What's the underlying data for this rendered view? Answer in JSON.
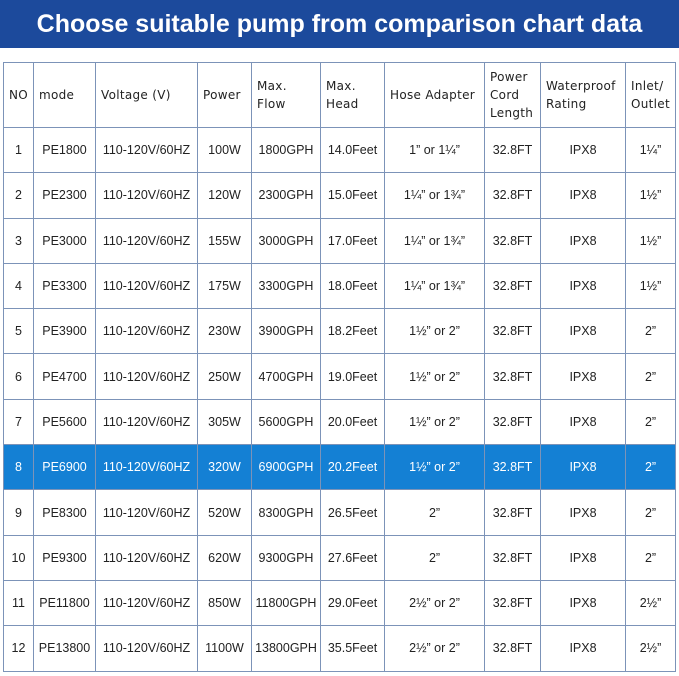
{
  "header": {
    "title": "Choose suitable pump from comparison chart data"
  },
  "table": {
    "columns": [
      "NO",
      "mode",
      "Voltage (V)",
      "Power",
      "Max.\nFlow",
      "Max.\nHead",
      "Hose Adapter",
      "Power\nCord\nLength",
      "Waterproof\nRating",
      "Inlet/\nOutlet"
    ],
    "rows": [
      [
        "1",
        "PE1800",
        "110-120V/60HZ",
        "100W",
        "1800GPH",
        "14.0Feet",
        "1” or 1¼”",
        "32.8FT",
        "IPX8",
        "1¼”"
      ],
      [
        "2",
        "PE2300",
        "110-120V/60HZ",
        "120W",
        "2300GPH",
        "15.0Feet",
        "1¼” or 1¾”",
        "32.8FT",
        "IPX8",
        "1½”"
      ],
      [
        "3",
        "PE3000",
        "110-120V/60HZ",
        "155W",
        "3000GPH",
        "17.0Feet",
        "1¼” or 1¾”",
        "32.8FT",
        "IPX8",
        "1½”"
      ],
      [
        "4",
        "PE3300",
        "110-120V/60HZ",
        "175W",
        "3300GPH",
        "18.0Feet",
        "1¼” or 1¾”",
        "32.8FT",
        "IPX8",
        "1½”"
      ],
      [
        "5",
        "PE3900",
        "110-120V/60HZ",
        "230W",
        "3900GPH",
        "18.2Feet",
        "1½” or 2”",
        "32.8FT",
        "IPX8",
        "2”"
      ],
      [
        "6",
        "PE4700",
        "110-120V/60HZ",
        "250W",
        "4700GPH",
        "19.0Feet",
        "1½” or 2”",
        "32.8FT",
        "IPX8",
        "2”"
      ],
      [
        "7",
        "PE5600",
        "110-120V/60HZ",
        "305W",
        "5600GPH",
        "20.0Feet",
        "1½” or 2”",
        "32.8FT",
        "IPX8",
        "2”"
      ],
      [
        "8",
        "PE6900",
        "110-120V/60HZ",
        "320W",
        "6900GPH",
        "20.2Feet",
        "1½” or 2”",
        "32.8FT",
        "IPX8",
        "2”"
      ],
      [
        "9",
        "PE8300",
        "110-120V/60HZ",
        "520W",
        "8300GPH",
        "26.5Feet",
        "2”",
        "32.8FT",
        "IPX8",
        "2”"
      ],
      [
        "10",
        "PE9300",
        "110-120V/60HZ",
        "620W",
        "9300GPH",
        "27.6Feet",
        "2”",
        "32.8FT",
        "IPX8",
        "2”"
      ],
      [
        "11",
        "PE11800",
        "110-120V/60HZ",
        "850W",
        "11800GPH",
        "29.0Feet",
        "2½” or 2”",
        "32.8FT",
        "IPX8",
        "2½”"
      ],
      [
        "12",
        "PE13800",
        "110-120V/60HZ",
        "1100W",
        "13800GPH",
        "35.5Feet",
        "2½” or 2”",
        "32.8FT",
        "IPX8",
        "2½”"
      ]
    ]
  }
}
